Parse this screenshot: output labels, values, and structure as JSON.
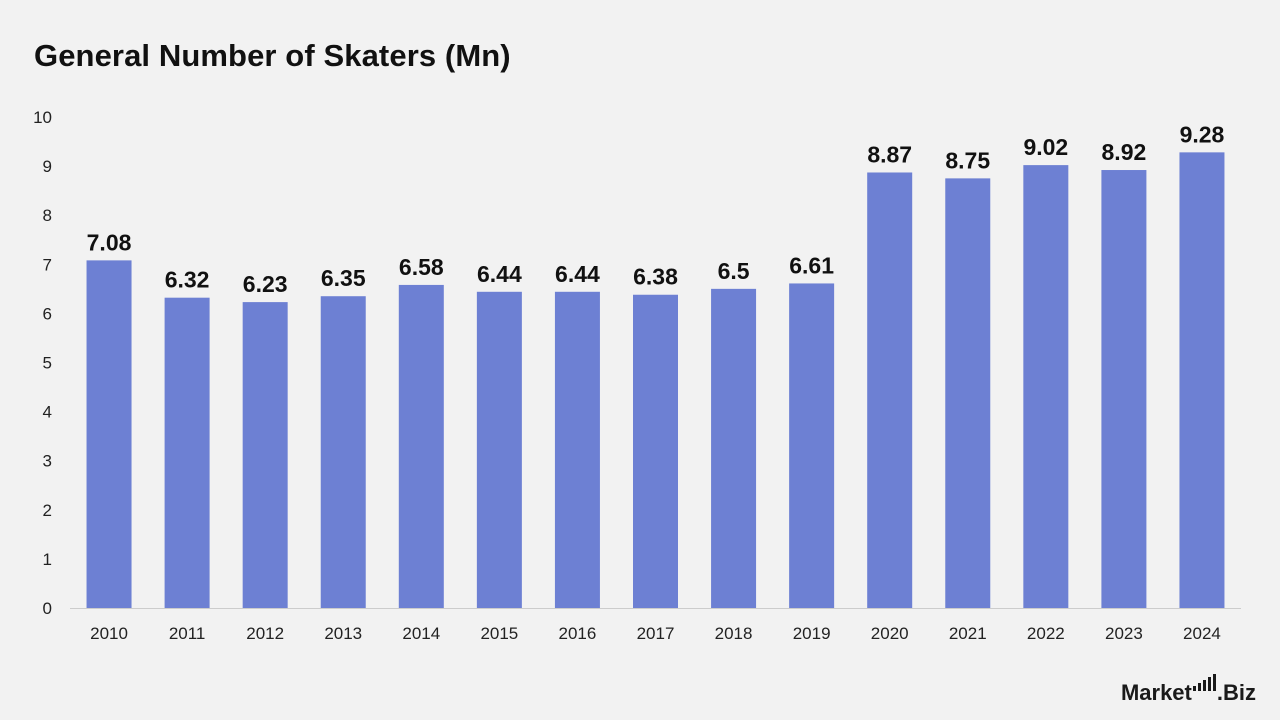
{
  "title": "General Number of Skaters (Mn)",
  "watermark": {
    "brand_left": "Market",
    "brand_right": ".Biz"
  },
  "colors": {
    "bar": "#6d80d3",
    "background": "#f2f2f2",
    "axis_line": "#cccccc"
  },
  "chart_data": {
    "type": "bar",
    "title": "General Number of Skaters (Mn)",
    "xlabel": "",
    "ylabel": "",
    "categories": [
      "2010",
      "2011",
      "2012",
      "2013",
      "2014",
      "2015",
      "2016",
      "2017",
      "2018",
      "2019",
      "2020",
      "2021",
      "2022",
      "2023",
      "2024"
    ],
    "values": [
      7.08,
      6.32,
      6.23,
      6.35,
      6.58,
      6.44,
      6.44,
      6.38,
      6.5,
      6.61,
      8.87,
      8.75,
      9.02,
      8.92,
      9.28
    ],
    "data_labels": [
      "7.08",
      "6.32",
      "6.23",
      "6.35",
      "6.58",
      "6.44",
      "6.44",
      "6.38",
      "6.5",
      "6.61",
      "8.87",
      "8.75",
      "9.02",
      "8.92",
      "9.28"
    ],
    "yticks": [
      0,
      1,
      2,
      3,
      4,
      5,
      6,
      7,
      8,
      9,
      10
    ],
    "ylim": [
      0,
      10
    ],
    "grid": false,
    "legend": "none"
  }
}
